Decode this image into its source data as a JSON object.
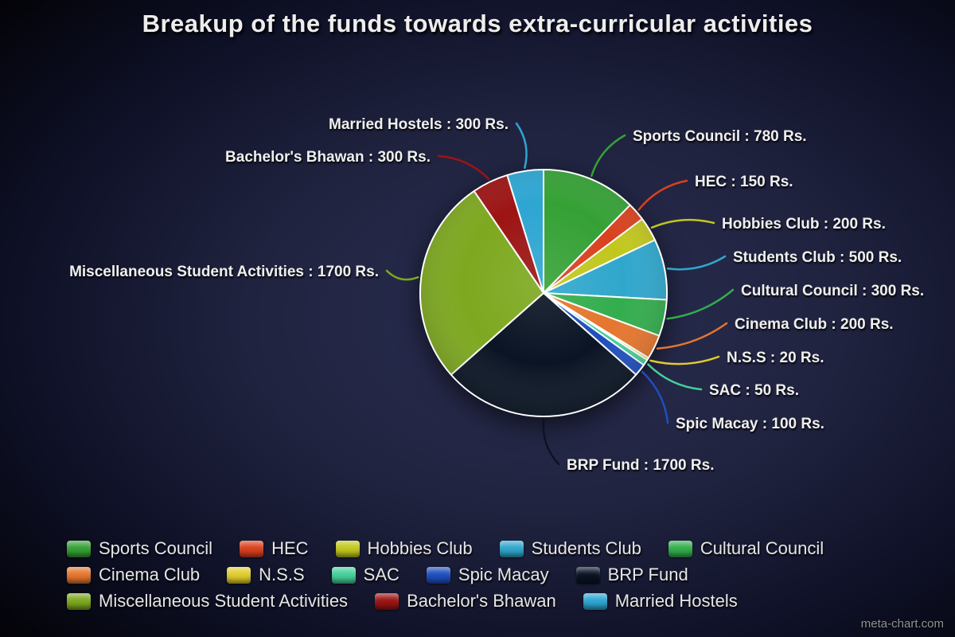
{
  "watermark": "meta-chart.com",
  "chart_data": {
    "type": "pie",
    "title": "Breakup of the funds towards extra-curricular activities",
    "value_suffix": "Rs.",
    "label_format": "{name} : {value} Rs.",
    "total": 6300,
    "legend_position": "bottom",
    "series": [
      {
        "name": "Sports Council",
        "value": 780,
        "color": "#35a135"
      },
      {
        "name": "HEC",
        "value": 150,
        "color": "#d9411e"
      },
      {
        "name": "Hobbies Club",
        "value": 200,
        "color": "#c1c71d"
      },
      {
        "name": "Students Club",
        "value": 500,
        "color": "#2fa7cc"
      },
      {
        "name": "Cultural Council",
        "value": 300,
        "color": "#33ad4d"
      },
      {
        "name": "Cinema Club",
        "value": 200,
        "color": "#e5762e"
      },
      {
        "name": "N.S.S",
        "value": 20,
        "color": "#e0cb2f"
      },
      {
        "name": "SAC",
        "value": 50,
        "color": "#45cf9a"
      },
      {
        "name": "Spic Macay",
        "value": 100,
        "color": "#1f4fbe"
      },
      {
        "name": "BRP Fund",
        "value": 1700,
        "color": "#0a1424"
      },
      {
        "name": "Miscellaneous Student Activities",
        "value": 1700,
        "color": "#7da81f"
      },
      {
        "name": "Bachelor's Bhawan",
        "value": 300,
        "color": "#9c1414"
      },
      {
        "name": "Married Hostels",
        "value": 300,
        "color": "#2da6d2"
      }
    ]
  }
}
